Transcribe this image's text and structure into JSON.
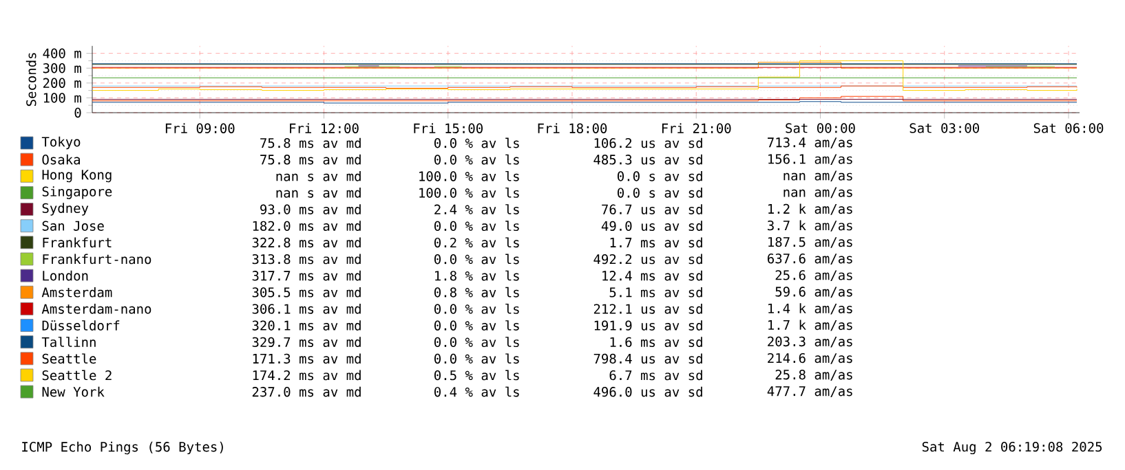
{
  "chart_data": {
    "type": "step",
    "ylabel": "Seconds",
    "x": [
      "2025-08-01T06:24",
      "2025-08-01T08:00",
      "2025-08-01T09:00",
      "2025-08-01T10:30",
      "2025-08-01T12:00",
      "2025-08-01T13:30",
      "2025-08-01T15:00",
      "2025-08-01T16:30",
      "2025-08-01T18:00",
      "2025-08-01T19:30",
      "2025-08-01T21:00",
      "2025-08-01T22:30",
      "2025-08-01T23:30",
      "2025-08-02T00:30",
      "2025-08-02T02:00",
      "2025-08-02T03:30",
      "2025-08-02T05:00",
      "2025-08-02T06:12"
    ],
    "xlim": [
      "2025-08-01T06:24",
      "2025-08-02T06:16"
    ],
    "xticks": [
      {
        "value": "2025-08-01T09:00",
        "label": "Fri 09:00"
      },
      {
        "value": "2025-08-01T12:00",
        "label": "Fri 12:00"
      },
      {
        "value": "2025-08-01T15:00",
        "label": "Fri 15:00"
      },
      {
        "value": "2025-08-01T18:00",
        "label": "Fri 18:00"
      },
      {
        "value": "2025-08-01T21:00",
        "label": "Fri 21:00"
      },
      {
        "value": "2025-08-02T00:00",
        "label": "Sat 00:00"
      },
      {
        "value": "2025-08-02T03:00",
        "label": "Sat 03:00"
      },
      {
        "value": "2025-08-02T06:00",
        "label": "Sat 06:00"
      }
    ],
    "ylim": [
      0,
      450
    ],
    "yticks": [
      0,
      {
        "value": 100,
        "label": "100 m"
      },
      {
        "value": 200,
        "label": "200 m"
      },
      {
        "value": 300,
        "label": "300 m"
      },
      {
        "value": 400,
        "label": "400 m"
      }
    ],
    "grid": true,
    "legend": "bottom",
    "marker": "none",
    "series": [
      {
        "name": "Tokyo",
        "color": "#0d4a8c",
        "values": [
          70,
          70,
          70,
          70,
          65,
          65,
          70,
          70,
          70,
          70,
          70,
          70,
          75,
          70,
          70,
          70,
          70,
          70
        ]
      },
      {
        "name": "Osaka",
        "color": "#ff4000",
        "values": [
          80,
          80,
          80,
          80,
          80,
          80,
          80,
          80,
          80,
          80,
          80,
          85,
          100,
          110,
          80,
          80,
          80,
          80
        ]
      },
      {
        "name": "Hong Kong",
        "color": "#ffd700",
        "values": [
          null,
          null,
          null,
          null,
          null,
          null,
          null,
          null,
          null,
          null,
          null,
          null,
          null,
          null,
          null,
          null,
          null,
          null
        ]
      },
      {
        "name": "Singapore",
        "color": "#4a9c2a",
        "values": [
          null,
          null,
          null,
          null,
          null,
          null,
          null,
          null,
          null,
          null,
          null,
          null,
          null,
          null,
          null,
          null,
          null,
          null
        ]
      },
      {
        "name": "Sydney",
        "color": "#7a0a2a",
        "values": [
          90,
          90,
          90,
          90,
          90,
          90,
          90,
          90,
          90,
          90,
          90,
          90,
          90,
          90,
          90,
          90,
          90,
          90
        ]
      },
      {
        "name": "San Jose",
        "color": "#87cefa",
        "values": [
          180,
          180,
          180,
          180,
          180,
          180,
          180,
          180,
          180,
          180,
          180,
          180,
          180,
          180,
          180,
          180,
          180,
          180
        ]
      },
      {
        "name": "Frankfurt",
        "color": "#2f3f10",
        "values": [
          325,
          325,
          325,
          325,
          325,
          325,
          325,
          325,
          325,
          325,
          325,
          325,
          325,
          325,
          325,
          325,
          325,
          325
        ]
      },
      {
        "name": "Frankfurt-nano",
        "color": "#9acd32",
        "x": [
          "2025-08-01T12:30",
          "2025-08-01T13:50",
          "2025-08-01T14:00",
          "2025-08-01T14:40",
          "2025-08-01T15:20",
          "2025-08-02T03:40",
          "2025-08-02T04:00",
          "2025-08-02T05:20",
          "2025-08-02T05:40"
        ],
        "values": [
          310,
          310,
          null,
          310,
          310,
          null,
          310,
          310,
          310
        ]
      },
      {
        "name": "London",
        "color": "#4b2a8a",
        "x": [
          "2025-08-01T12:50",
          "2025-08-01T13:20",
          "2025-08-01T13:30",
          "2025-08-02T03:20",
          "2025-08-02T05:00"
        ],
        "values": [
          315,
          315,
          null,
          315,
          315
        ]
      },
      {
        "name": "Amsterdam",
        "color": "#ff8c00",
        "values": [
          300,
          300,
          300,
          300,
          300,
          300,
          300,
          300,
          300,
          300,
          300,
          340,
          340,
          300,
          300,
          300,
          300,
          300
        ]
      },
      {
        "name": "Amsterdam-nano",
        "color": "#cc0000",
        "values": [
          305,
          305,
          305,
          305,
          305,
          305,
          305,
          305,
          305,
          305,
          305,
          305,
          305,
          305,
          305,
          305,
          305,
          305
        ]
      },
      {
        "name": "Düsseldorf",
        "color": "#1e90ff",
        "values": [
          null,
          null,
          null,
          null,
          null,
          null,
          null,
          null,
          null,
          null,
          null,
          null,
          null,
          null,
          null,
          null,
          null,
          null
        ]
      },
      {
        "name": "Tallinn",
        "color": "#0a4a80",
        "values": [
          330,
          330,
          330,
          330,
          330,
          330,
          330,
          330,
          330,
          330,
          330,
          330,
          330,
          330,
          330,
          330,
          330,
          330
        ]
      },
      {
        "name": "Seattle",
        "color": "#ff4500",
        "values": [
          170,
          170,
          175,
          170,
          170,
          165,
          170,
          175,
          170,
          170,
          175,
          170,
          170,
          180,
          170,
          170,
          175,
          170
        ]
      },
      {
        "name": "Seattle 2",
        "color": "#ffd200",
        "values": [
          150,
          160,
          155,
          150,
          155,
          160,
          155,
          160,
          160,
          160,
          160,
          240,
          350,
          350,
          150,
          155,
          150,
          160
        ]
      },
      {
        "name": "New York",
        "color": "#4aa02a",
        "values": [
          235,
          235,
          235,
          235,
          235,
          235,
          235,
          235,
          235,
          235,
          235,
          235,
          235,
          235,
          235,
          235,
          235,
          235
        ]
      }
    ],
    "annotations": [
      "75.8 ms av md",
      "0.0 % av ls",
      "106.2 us av sd",
      "713.4 am/as",
      "75.8 ms av md",
      "0.0 % av ls",
      "485.3 us av sd",
      "156.1 am/as",
      "nan s av md",
      "100.0 % av ls",
      "0.0 s av sd",
      "nan am/as",
      "nan s av md",
      "100.0 % av ls",
      "0.0 s av sd",
      "nan am/as",
      "93.0 ms av md",
      "2.4 % av ls",
      "76.7 us av sd",
      "1.2 k am/as",
      "182.0 ms av md",
      "0.0 % av ls",
      "49.0 us av sd",
      "3.7 k am/as",
      "322.8 ms av md",
      "0.2 % av ls",
      "1.7 ms av sd",
      "187.5 am/as",
      "313.8 ms av md",
      "0.0 % av ls",
      "492.2 us av sd",
      "637.6 am/as",
      "317.7 ms av md",
      "1.8 % av ls",
      "12.4 ms av sd",
      "25.6 am/as",
      "305.5 ms av md",
      "0.8 % av ls",
      "5.1 ms av sd",
      "59.6 am/as",
      "306.1 ms av md",
      "0.0 % av ls",
      "212.1 us av sd",
      "1.4 k am/as",
      "320.1 ms av md",
      "0.0 % av ls",
      "191.9 us av sd",
      "1.7 k am/as",
      "329.7 ms av md",
      "0.0 % av ls",
      "1.6 ms av sd",
      "203.3 am/as",
      "171.3 ms av md",
      "0.0 % av ls",
      "798.4 us av sd",
      "214.6 am/as",
      "174.2 ms av md",
      "0.5 % av ls",
      "6.7 ms av sd",
      "25.8 am/as",
      "237.0 ms av md",
      "0.4 % av ls",
      "496.0 us av sd",
      "477.7 am/as",
      "ICMP Echo Pings (56 Bytes)",
      "Sat Aug  2 06:19:08 2025"
    ]
  }
}
